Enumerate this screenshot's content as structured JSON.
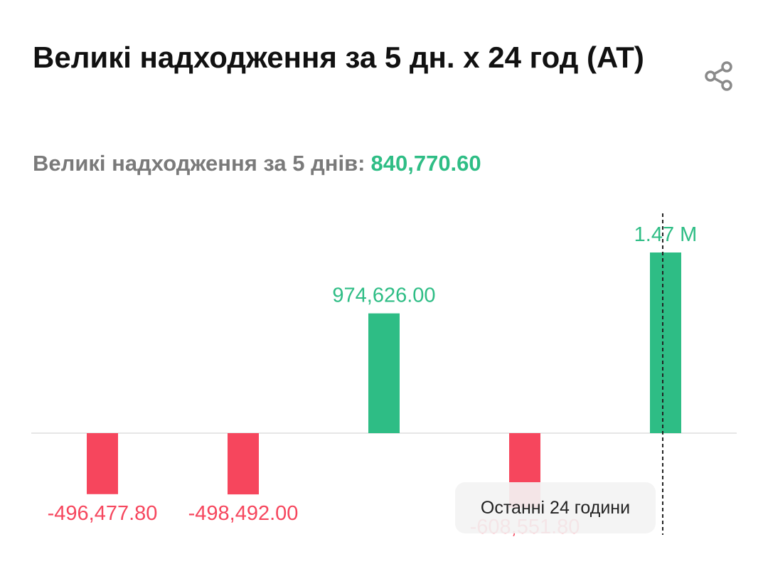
{
  "header": {
    "title": "Великі надходження за 5 дн. x 24 год (AT)",
    "share_icon": "share-icon"
  },
  "summary": {
    "label": "Великі надходження за 5 днів:",
    "value": "840,770.60",
    "value_color": "#2ebd85"
  },
  "tooltip": {
    "label": "Останні 24 години"
  },
  "chart_data": {
    "type": "bar",
    "values": [
      -496477.8,
      -498492.0,
      974626.0,
      -608551.8,
      1470000
    ],
    "data_labels": [
      "-496,477.80",
      "-498,492.00",
      "974,626.00",
      "-608,551.80",
      "1.47 M"
    ],
    "colors": {
      "positive": "#2ebd85",
      "negative": "#f6465d"
    },
    "grid": false,
    "legend": "none",
    "marker_index": 4
  }
}
